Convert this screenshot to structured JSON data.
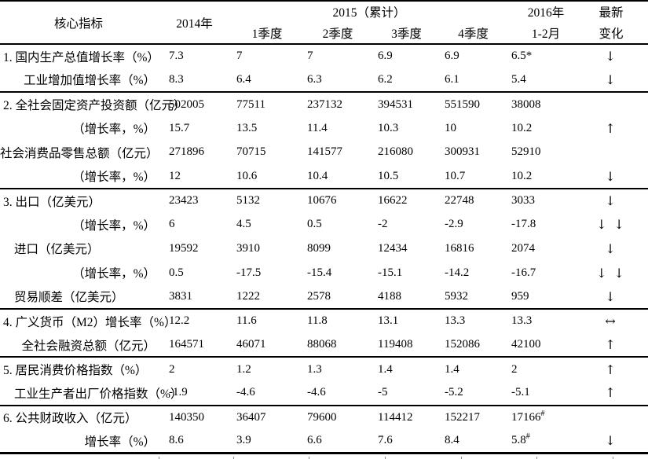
{
  "table": {
    "header": {
      "core_label": "核心指标",
      "col_2014": "2014年",
      "group_2015": "2015（累计）",
      "quarters": [
        "1季度",
        "2季度",
        "3季度",
        "4季度"
      ],
      "col_2016": "2016年",
      "col_2016_sub": "1-2月",
      "latest_line1": "最新",
      "latest_line2": "变化"
    },
    "arrow_legend": {
      "down": "↓",
      "up": "↑",
      "double_down": "↓ ↓",
      "flat": "↔"
    },
    "sections": [
      {
        "rows": [
          {
            "label": "1. 国内生产总值增长率（%）",
            "align": "left",
            "values": [
              "7.3",
              "7",
              "7",
              "6.9",
              "6.9",
              "6.5*"
            ],
            "arrow": "↓"
          },
          {
            "label": "工业增加值增长率（%）",
            "align": "right",
            "values": [
              "8.3",
              "6.4",
              "6.3",
              "6.2",
              "6.1",
              "5.4"
            ],
            "arrow": "↓"
          }
        ]
      },
      {
        "rows": [
          {
            "label": "2. 全社会固定资产投资额（亿元）",
            "align": "left",
            "values": [
              "502005",
              "77511",
              "237132",
              "394531",
              "551590",
              "38008"
            ],
            "arrow": ""
          },
          {
            "label": "（增长率，%）",
            "align": "right",
            "values": [
              "15.7",
              "13.5",
              "11.4",
              "10.3",
              "10",
              "10.2"
            ],
            "arrow": "↑"
          },
          {
            "label": "社会消费品零售总额（亿元）",
            "align": "right",
            "values": [
              "271896",
              "70715",
              "141577",
              "216080",
              "300931",
              "52910"
            ],
            "arrow": ""
          },
          {
            "label": "（增长率，%）",
            "align": "right",
            "values": [
              "12",
              "10.6",
              "10.4",
              "10.5",
              "10.7",
              "10.2"
            ],
            "arrow": "↓"
          }
        ]
      },
      {
        "rows": [
          {
            "label": "3. 出口（亿美元）",
            "align": "left",
            "values": [
              "23423",
              "5132",
              "10676",
              "16622",
              "22748",
              "3033"
            ],
            "arrow": "↓"
          },
          {
            "label": "（增长率，%）",
            "align": "right",
            "values": [
              "6",
              "4.5",
              "0.5",
              "-2",
              "-2.9",
              "-17.8"
            ],
            "arrow": "↓ ↓"
          },
          {
            "label": "进口（亿美元）",
            "align": "indent",
            "values": [
              "19592",
              "3910",
              "8099",
              "12434",
              "16816",
              "2074"
            ],
            "arrow": "↓"
          },
          {
            "label": "（增长率，%）",
            "align": "right",
            "values": [
              "0.5",
              "-17.5",
              "-15.4",
              "-15.1",
              "-14.2",
              "-16.7"
            ],
            "arrow": "↓ ↓"
          },
          {
            "label": "贸易顺差（亿美元）",
            "align": "indent",
            "values": [
              "3831",
              "1222",
              "2578",
              "4188",
              "5932",
              "959"
            ],
            "arrow": "↓"
          }
        ]
      },
      {
        "rows": [
          {
            "label": "4. 广义货币（M2）增长率（%）",
            "align": "left",
            "values": [
              "12.2",
              "11.6",
              "11.8",
              "13.1",
              "13.3",
              "13.3"
            ],
            "arrow": "↔"
          },
          {
            "label": "全社会融资总额（亿元）",
            "align": "right",
            "values": [
              "164571",
              "46071",
              "88068",
              "119408",
              "152086",
              "42100"
            ],
            "arrow": "↑"
          }
        ]
      },
      {
        "rows": [
          {
            "label": "5. 居民消费价格指数（%）",
            "align": "left",
            "values": [
              "2",
              "1.2",
              "1.3",
              "1.4",
              "1.4",
              "2"
            ],
            "arrow": "↑"
          },
          {
            "label": "工业生产者出厂价格指数（%）",
            "align": "indent",
            "values": [
              "-1.9",
              "-4.6",
              "-4.6",
              "-5",
              "-5.2",
              "-5.1"
            ],
            "arrow": "↑"
          }
        ]
      },
      {
        "rows": [
          {
            "label": "6. 公共财政收入（亿元）",
            "align": "left",
            "values": [
              "140350",
              "36407",
              "79600",
              "114412",
              "152217",
              "17166"
            ],
            "sup": "#",
            "arrow": ""
          },
          {
            "label": "增长率（%）",
            "align": "right",
            "values": [
              "8.6",
              "3.9",
              "6.6",
              "7.6",
              "8.4",
              "5.8"
            ],
            "sup": "#",
            "arrow": "↓"
          }
        ]
      }
    ]
  },
  "colors": {
    "text": "#000000",
    "background": "#ffffff",
    "rule": "#000000",
    "tick": "#8a8a8a"
  }
}
